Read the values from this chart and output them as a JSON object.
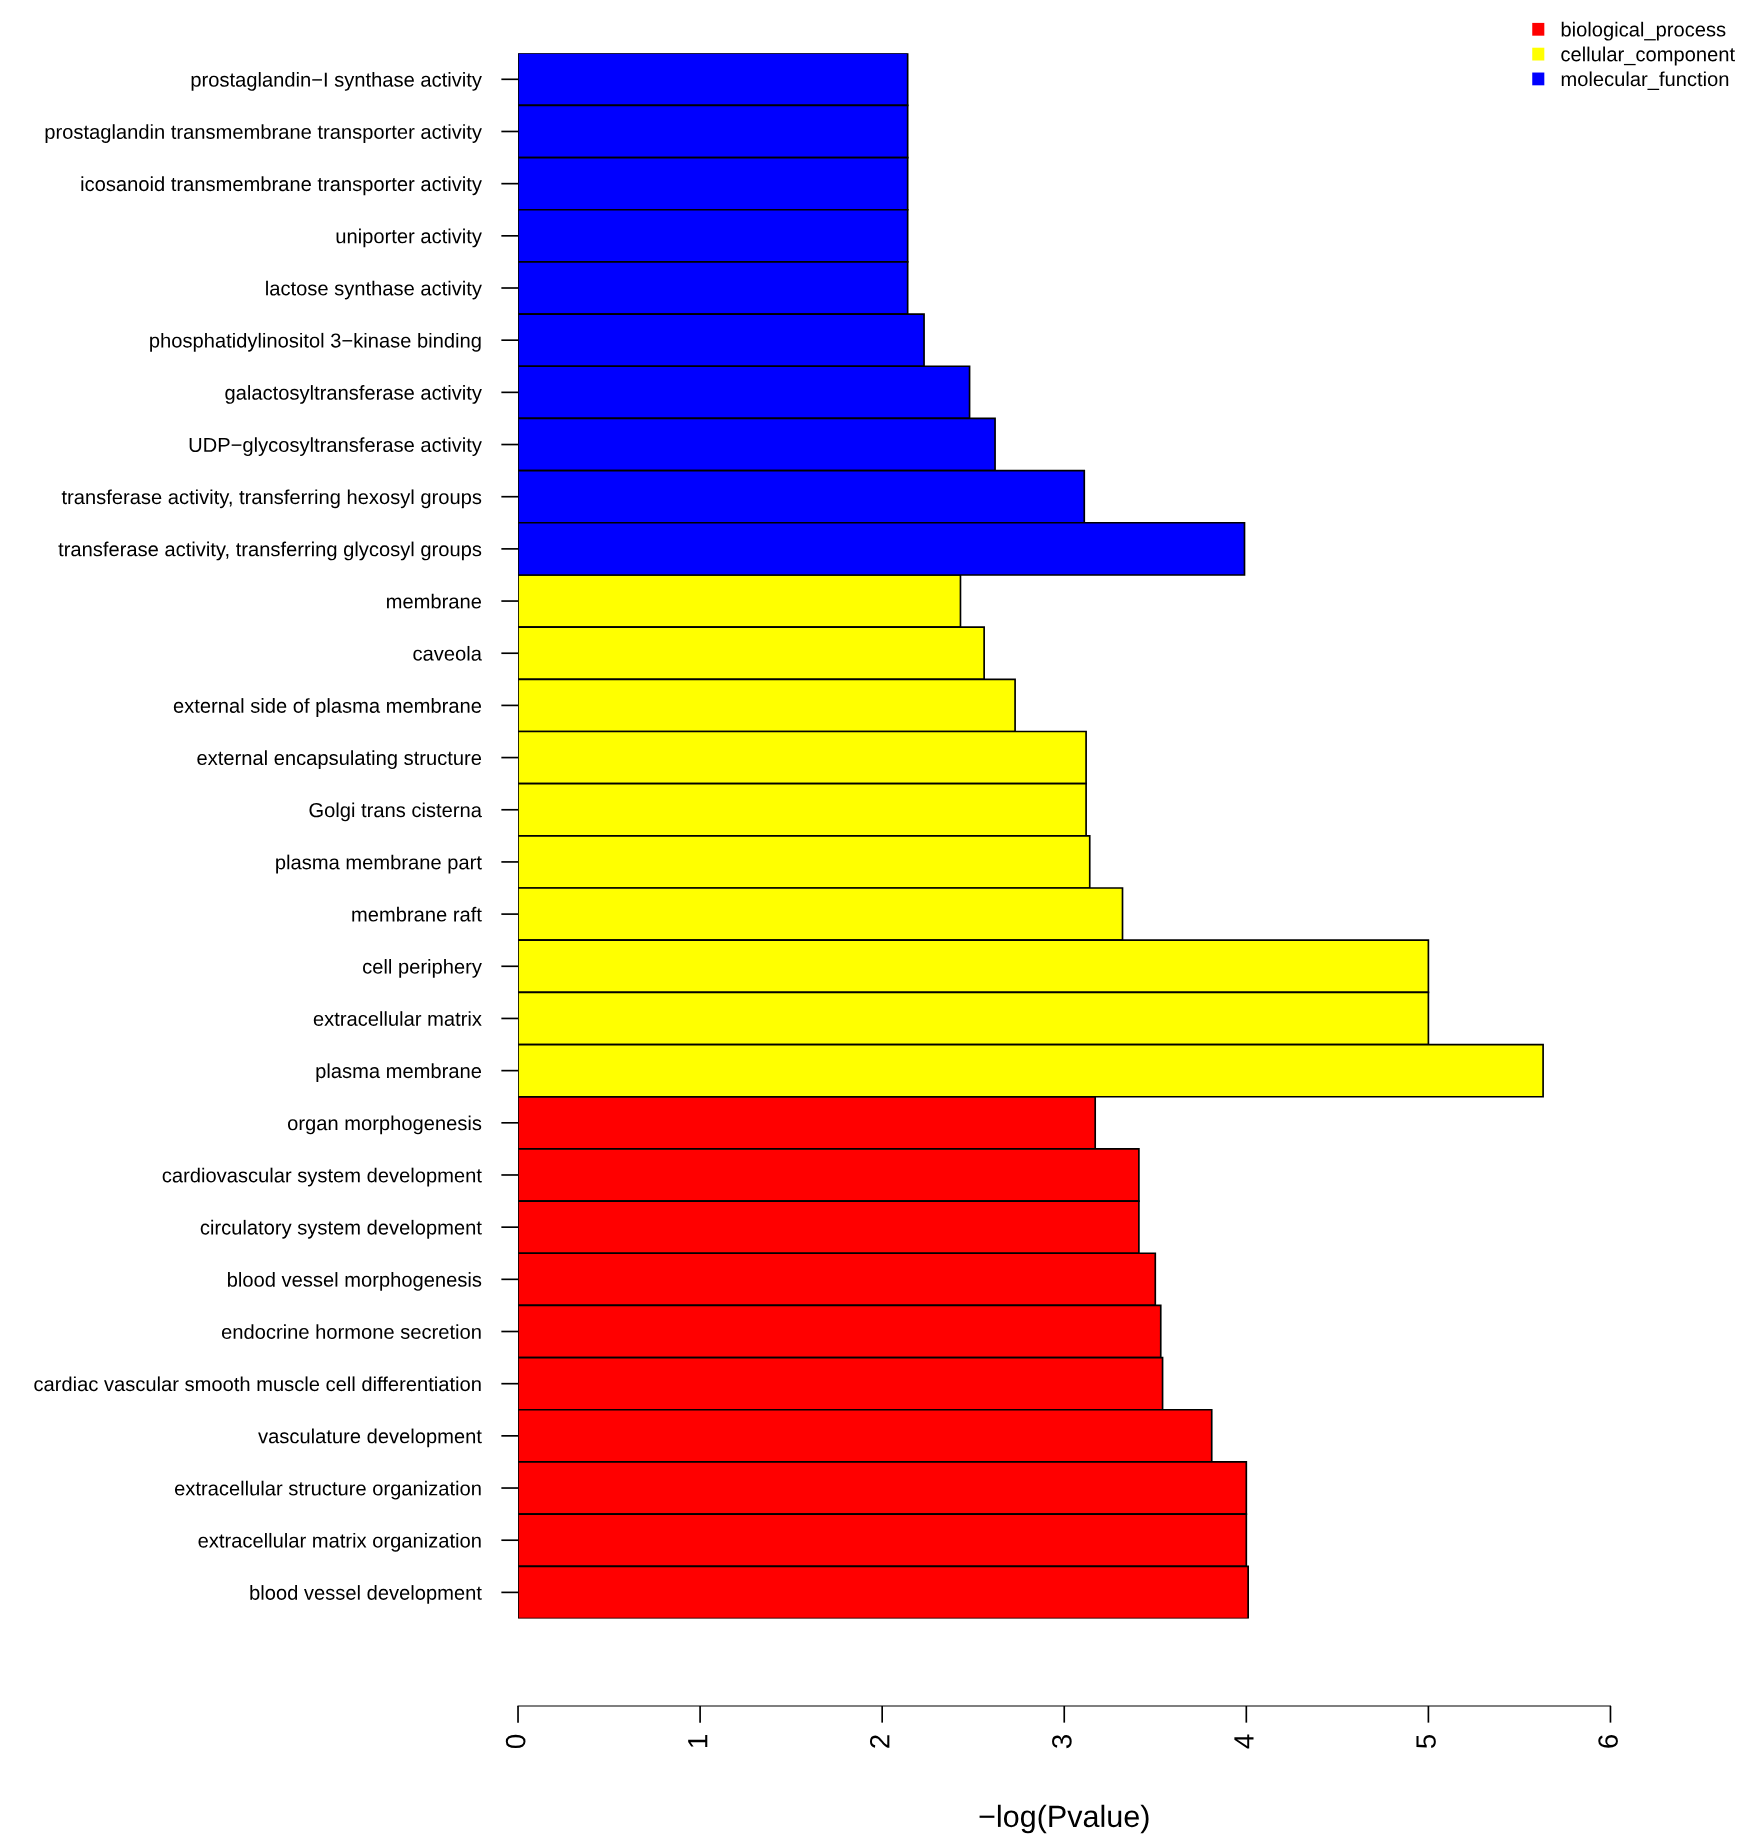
{
  "chart_data": {
    "type": "bar",
    "orientation": "horizontal",
    "categories": [
      "prostaglandin−I synthase activity",
      "prostaglandin transmembrane transporter activity",
      "icosanoid transmembrane transporter activity",
      "uniporter activity",
      "lactose synthase activity",
      "phosphatidylinositol 3−kinase binding",
      "galactosyltransferase activity",
      "UDP−glycosyltransferase activity",
      "transferase activity, transferring hexosyl groups",
      "transferase activity, transferring glycosyl groups",
      "membrane",
      "caveola",
      "external side of plasma membrane",
      "external encapsulating structure",
      "Golgi trans cisterna",
      "plasma membrane part",
      "membrane raft",
      "cell periphery",
      "extracellular matrix",
      "plasma membrane",
      "organ morphogenesis",
      "cardiovascular system development",
      "circulatory system development",
      "blood vessel morphogenesis",
      "endocrine hormone secretion",
      "cardiac vascular smooth muscle cell differentiation",
      "vasculature development",
      "extracellular structure organization",
      "extracellular matrix organization",
      "blood vessel development"
    ],
    "series": [
      {
        "name": "biological_process",
        "color": "#ff0000",
        "values": [
          null,
          null,
          null,
          null,
          null,
          null,
          null,
          null,
          null,
          null,
          null,
          null,
          null,
          null,
          null,
          null,
          null,
          null,
          null,
          null,
          3.17,
          3.41,
          3.41,
          3.5,
          3.53,
          3.54,
          3.81,
          4.0,
          4.0,
          4.01
        ]
      },
      {
        "name": "cellular_component",
        "color": "#ffff00",
        "values": [
          null,
          null,
          null,
          null,
          null,
          null,
          null,
          null,
          null,
          null,
          2.43,
          2.56,
          2.73,
          3.12,
          3.12,
          3.14,
          3.32,
          5.0,
          5.0,
          5.63,
          null,
          null,
          null,
          null,
          null,
          null,
          null,
          null,
          null,
          null
        ]
      },
      {
        "name": "molecular_function",
        "color": "#0000ff",
        "values": [
          2.14,
          2.14,
          2.14,
          2.14,
          2.14,
          2.23,
          2.48,
          2.62,
          3.11,
          3.99,
          null,
          null,
          null,
          null,
          null,
          null,
          null,
          null,
          null,
          null,
          null,
          null,
          null,
          null,
          null,
          null,
          null,
          null,
          null,
          null
        ]
      }
    ],
    "xlabel": "−log(Pvalue)",
    "xlim": [
      0,
      6
    ],
    "xticks": [
      0,
      1,
      2,
      3,
      4,
      5,
      6
    ],
    "legend": "top right",
    "grid": false
  }
}
